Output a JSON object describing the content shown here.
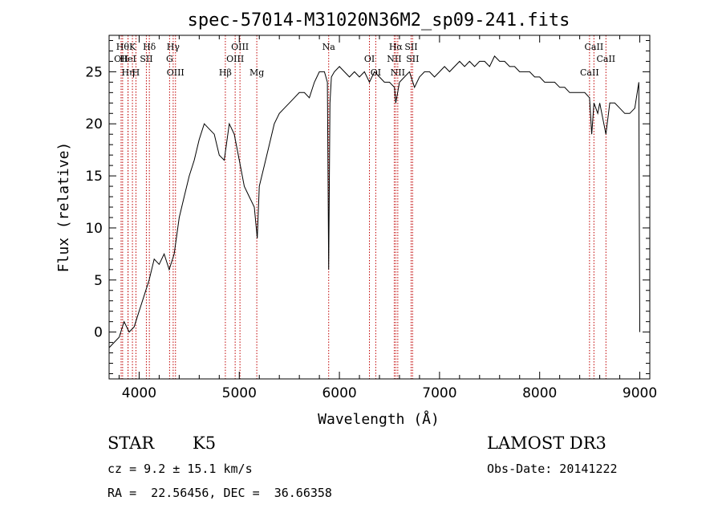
{
  "chart_data": {
    "type": "line",
    "title": "spec-57014-M31020N36M2_sp09-241.fits",
    "xlabel": "Wavelength (Å)",
    "ylabel": "Flux (relative)",
    "xlim": [
      3700,
      9100
    ],
    "ylim": [
      -4.5,
      28.5
    ],
    "xticks": [
      4000,
      5000,
      6000,
      7000,
      8000,
      9000
    ],
    "yticks": [
      0,
      5,
      10,
      15,
      20,
      25
    ],
    "grid": false,
    "series": [
      {
        "x": [
          3700,
          3750,
          3800,
          3850,
          3900,
          3950,
          4000,
          4050,
          4100,
          4150,
          4200,
          4250,
          4300,
          4350,
          4400,
          4450,
          4500,
          4550,
          4600,
          4650,
          4700,
          4750,
          4800,
          4850,
          4900,
          4950,
          5000,
          5050,
          5100,
          5150,
          5180,
          5200,
          5250,
          5300,
          5350,
          5400,
          5450,
          5500,
          5550,
          5600,
          5650,
          5700,
          5750,
          5800,
          5850,
          5880,
          5893,
          5906,
          5920,
          5950,
          6000,
          6050,
          6100,
          6150,
          6200,
          6250,
          6300,
          6350,
          6400,
          6450,
          6500,
          6550,
          6563,
          6600,
          6650,
          6700,
          6750,
          6800,
          6850,
          6900,
          6950,
          7000,
          7050,
          7100,
          7150,
          7200,
          7250,
          7300,
          7350,
          7400,
          7450,
          7500,
          7550,
          7600,
          7650,
          7700,
          7750,
          7800,
          7850,
          7900,
          7950,
          8000,
          8050,
          8100,
          8150,
          8200,
          8250,
          8300,
          8350,
          8400,
          8450,
          8498,
          8520,
          8542,
          8580,
          8600,
          8662,
          8700,
          8750,
          8800,
          8850,
          8900,
          8950,
          8990,
          9000
        ],
        "y": [
          -1.5,
          -1,
          -0.5,
          1,
          0,
          0.5,
          2,
          3.5,
          5,
          7,
          6.5,
          7.5,
          6,
          7.5,
          11,
          13,
          15,
          16.5,
          18.5,
          20,
          19.5,
          19,
          17,
          16.5,
          20,
          19,
          16.5,
          14,
          13,
          12,
          9,
          14,
          16,
          18,
          20,
          21,
          21.5,
          22,
          22.5,
          23,
          23,
          22.5,
          24,
          25,
          25,
          24,
          6,
          22,
          24.5,
          25,
          25.5,
          25,
          24.5,
          25,
          24.5,
          25,
          24,
          25,
          24.5,
          24,
          24,
          23.5,
          22,
          24,
          24.5,
          25,
          23.5,
          24.5,
          25,
          25,
          24.5,
          25,
          25.5,
          25,
          25.5,
          26,
          25.5,
          26,
          25.5,
          26,
          26,
          25.5,
          26.5,
          26,
          26,
          25.5,
          25.5,
          25,
          25,
          25,
          24.5,
          24.5,
          24,
          24,
          24,
          23.5,
          23.5,
          23,
          23,
          23,
          23,
          22.5,
          19,
          22,
          21,
          22,
          19,
          22,
          22,
          21.5,
          21,
          21,
          21.5,
          24,
          0
        ]
      }
    ],
    "lines": [
      {
        "wl": 3835,
        "label": "Hθ"
      },
      {
        "wl": 3820,
        "label": "OII"
      },
      {
        "wl": 3889,
        "label": "Hη"
      },
      {
        "wl": 3933,
        "label": "K"
      },
      {
        "wl": 3889,
        "label": "HeI"
      },
      {
        "wl": 3968,
        "label": "H"
      },
      {
        "wl": 4102,
        "label": "Hδ"
      },
      {
        "wl": 4072,
        "label": "SII"
      },
      {
        "wl": 4363,
        "label": "OIII"
      },
      {
        "wl": 4340,
        "label": "Hγ"
      },
      {
        "wl": 4304,
        "label": "G"
      },
      {
        "wl": 4861,
        "label": "Hβ"
      },
      {
        "wl": 5007,
        "label": "OIII"
      },
      {
        "wl": 4959,
        "label": "OIII"
      },
      {
        "wl": 5175,
        "label": "Mg"
      },
      {
        "wl": 5893,
        "label": "Na"
      },
      {
        "wl": 6300,
        "label": "OI"
      },
      {
        "wl": 6363,
        "label": "OI"
      },
      {
        "wl": 6563,
        "label": "Hα"
      },
      {
        "wl": 6548,
        "label": "NII"
      },
      {
        "wl": 6583,
        "label": "NII"
      },
      {
        "wl": 6716,
        "label": "SII"
      },
      {
        "wl": 6731,
        "label": "SII"
      },
      {
        "wl": 8498,
        "label": "CaII"
      },
      {
        "wl": 8542,
        "label": "CaII"
      },
      {
        "wl": 8662,
        "label": "CaII"
      }
    ]
  },
  "info": {
    "class": "STAR",
    "subclass": "K5",
    "survey": "LAMOST DR3",
    "cz": "cz = 9.2 ± 15.1 km/s",
    "obs_date": "Obs-Date: 20141222",
    "coords": "RA =  22.56456, DEC =  36.66358"
  },
  "colors": {
    "line_marker": "#c00000",
    "spectrum": "#000000"
  }
}
